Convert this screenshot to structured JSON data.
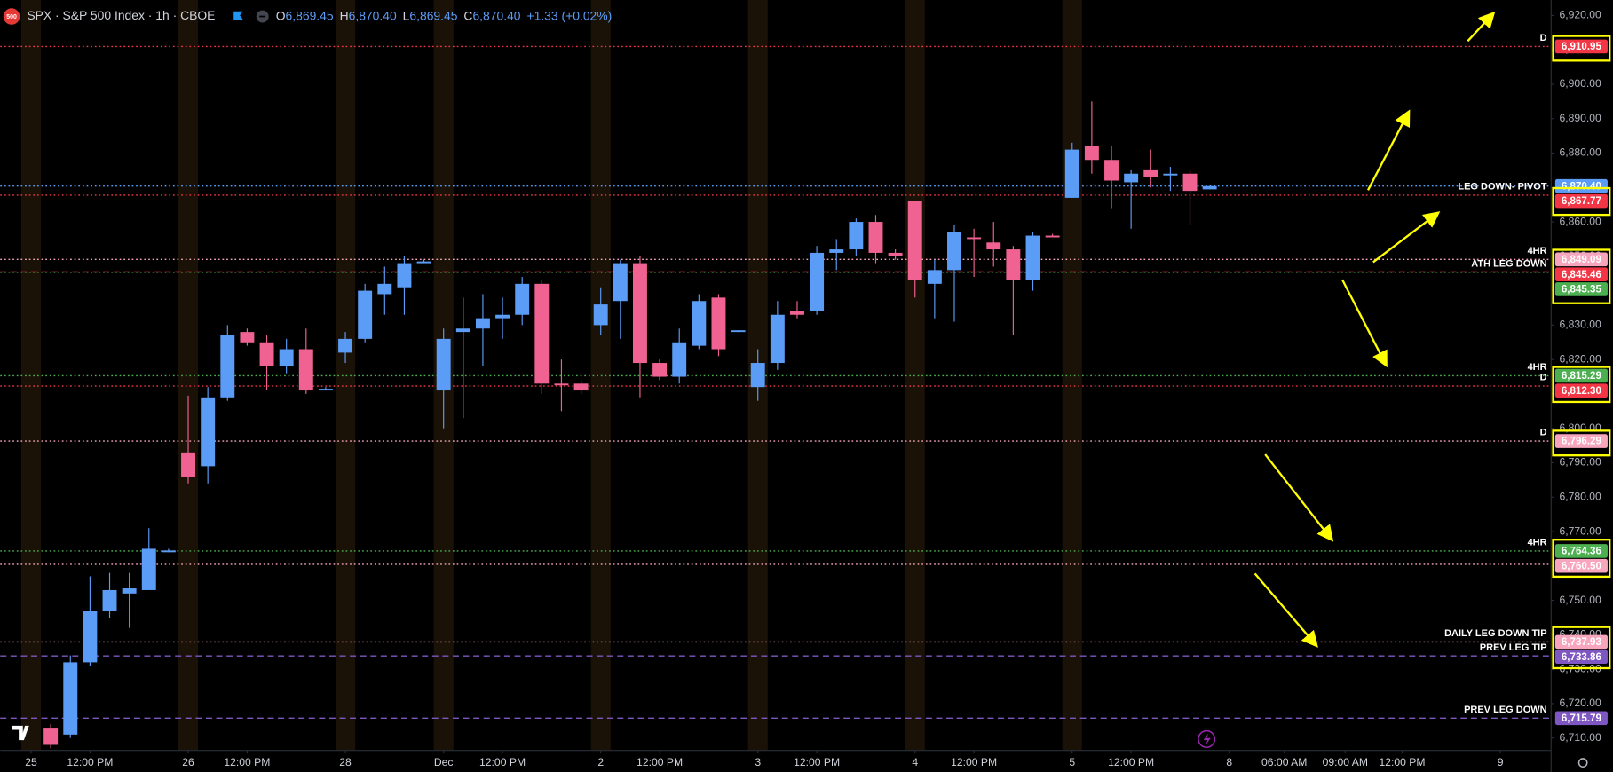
{
  "chart_data": {
    "type": "candlestick",
    "logo": "500",
    "title": "SPX · S&P 500 Index · 1h · CBOE",
    "legend_ohlc": [
      {
        "key": "O",
        "value": "6,869.45"
      },
      {
        "key": "H",
        "value": "6,870.40"
      },
      {
        "key": "L",
        "value": "6,869.45"
      },
      {
        "key": "C",
        "value": "6,870.40"
      }
    ],
    "change": "+1.33 (+0.02%)",
    "up_color": "#5b9cf6",
    "down_color": "#f06292",
    "grid": false,
    "x": [
      1,
      2,
      3,
      4,
      5,
      6,
      7,
      8,
      9,
      10,
      11,
      12,
      13,
      14,
      15,
      16,
      17,
      18,
      19,
      20,
      21,
      22,
      23,
      24,
      25,
      26,
      27,
      28,
      29,
      30,
      31,
      32,
      33,
      34,
      35,
      36,
      37,
      38,
      39,
      40,
      41,
      42,
      43,
      44,
      45,
      46,
      47,
      48,
      49,
      50,
      51,
      52,
      53,
      54,
      55,
      56,
      57,
      58,
      59,
      60
    ],
    "open": [
      6713,
      6711,
      6732,
      6747,
      6752,
      6753,
      6764,
      6793,
      6789,
      6809,
      6828,
      6825,
      6818,
      6823,
      6811,
      6822,
      6826,
      6839,
      6841,
      6848,
      6811,
      6828,
      6829,
      6832,
      6833,
      6842,
      6813,
      6813,
      6830,
      6837,
      6848,
      6819,
      6815,
      6824,
      6838,
      6828,
      6812,
      6819,
      6834,
      6834,
      6851,
      6852,
      6860,
      6851,
      6866,
      6842,
      6846,
      6855.5,
      6854,
      6852,
      6843,
      6856,
      6867,
      6882,
      6878,
      6871.5,
      6875,
      6873.5,
      6874,
      6869.45
    ],
    "high": [
      6714,
      6734,
      6757,
      6758,
      6758,
      6771,
      6765,
      6809.5,
      6812,
      6830,
      6829,
      6827,
      6826,
      6829,
      6812,
      6828,
      6842,
      6847,
      6850,
      6849,
      6829,
      6838,
      6839,
      6838,
      6844,
      6843,
      6820,
      6814,
      6841,
      6849,
      6850,
      6820,
      6829,
      6839,
      6839,
      6828.5,
      6823,
      6837,
      6837,
      6853,
      6855,
      6861,
      6862,
      6852,
      6866,
      6849,
      6859,
      6858,
      6860,
      6853,
      6857,
      6856.5,
      6883,
      6895,
      6882,
      6875,
      6881,
      6876,
      6875,
      6870.4
    ],
    "low": [
      6707,
      6710,
      6731,
      6745,
      6742,
      6753,
      6764,
      6784,
      6784,
      6808,
      6824,
      6811,
      6816,
      6810,
      6811,
      6819,
      6825,
      6833,
      6833,
      6848,
      6800,
      6803,
      6818,
      6826,
      6830,
      6810,
      6805,
      6810,
      6827,
      6826,
      6809,
      6814,
      6813,
      6823,
      6821,
      6828,
      6808,
      6817,
      6832,
      6833,
      6846,
      6850,
      6848,
      6849,
      6838,
      6832,
      6831,
      6844,
      6847,
      6827,
      6840,
      6855.5,
      6867,
      6874,
      6864,
      6858,
      6870,
      6869,
      6859,
      6869.45
    ],
    "close": [
      6708,
      6732,
      6747,
      6753,
      6753.5,
      6765,
      6764.5,
      6786,
      6809,
      6827,
      6825,
      6818,
      6823,
      6811,
      6811.5,
      6826,
      6840,
      6842,
      6848,
      6848.5,
      6826,
      6829,
      6832,
      6833,
      6842,
      6813,
      6812.5,
      6811,
      6836,
      6848,
      6819,
      6815,
      6825,
      6837,
      6823,
      6828.5,
      6819,
      6833,
      6833,
      6851,
      6852,
      6860,
      6851,
      6850,
      6843,
      6846,
      6857,
      6855,
      6852,
      6843,
      6856,
      6855.5,
      6881,
      6878,
      6872,
      6874,
      6873,
      6874,
      6869,
      6870.4
    ],
    "xlim": [
      -1.57,
      77.38
    ],
    "xticks": [
      {
        "value": 0,
        "label": "25"
      },
      {
        "value": 3,
        "label": "12:00 PM"
      },
      {
        "value": 8,
        "label": "26"
      },
      {
        "value": 11,
        "label": "12:00 PM"
      },
      {
        "value": 16,
        "label": "28"
      },
      {
        "value": 21,
        "label": "Dec"
      },
      {
        "value": 24,
        "label": "12:00 PM"
      },
      {
        "value": 29,
        "label": "2"
      },
      {
        "value": 32,
        "label": "12:00 PM"
      },
      {
        "value": 37,
        "label": "3"
      },
      {
        "value": 40,
        "label": "12:00 PM"
      },
      {
        "value": 45,
        "label": "4"
      },
      {
        "value": 48,
        "label": "12:00 PM"
      },
      {
        "value": 53,
        "label": "5"
      },
      {
        "value": 56,
        "label": "12:00 PM"
      },
      {
        "value": 61,
        "label": "8"
      },
      {
        "value": 63.8,
        "label": "06:00 AM"
      },
      {
        "value": 66.9,
        "label": "09:00 AM"
      },
      {
        "value": 69.8,
        "label": "12:00 PM"
      },
      {
        "value": 74.8,
        "label": "9"
      }
    ],
    "ylim": [
      6706.4,
      6924.48
    ],
    "yticks": [
      {
        "value": 6710,
        "label": "6,710.00"
      },
      {
        "value": 6720,
        "label": "6,720.00"
      },
      {
        "value": 6730,
        "label": "6,730.00"
      },
      {
        "value": 6740,
        "label": "6,740.00"
      },
      {
        "value": 6750,
        "label": "6,750.00"
      },
      {
        "value": 6760,
        "label": "6,760.00"
      },
      {
        "value": 6770,
        "label": "6,770.00"
      },
      {
        "value": 6780,
        "label": "6,780.00"
      },
      {
        "value": 6790,
        "label": "6,790.00"
      },
      {
        "value": 6800,
        "label": "6,800.00"
      },
      {
        "value": 6810,
        "label": "6,810.00"
      },
      {
        "value": 6820,
        "label": "6,820.00"
      },
      {
        "value": 6830,
        "label": "6,830.00"
      },
      {
        "value": 6840,
        "label": "6,840.00"
      },
      {
        "value": 6850,
        "label": "6,850.00"
      },
      {
        "value": 6860,
        "label": "6,860.00"
      },
      {
        "value": 6870,
        "label": "6,870.00"
      },
      {
        "value": 6880,
        "label": "6,880.00"
      },
      {
        "value": 6890,
        "label": "6,890.00"
      },
      {
        "value": 6900,
        "label": "6,900.00"
      },
      {
        "value": 6910,
        "label": "6,910.00"
      },
      {
        "value": 6920,
        "label": "6,920.00"
      }
    ],
    "session_bands": [
      0,
      8,
      16,
      21,
      29,
      37,
      45,
      53
    ],
    "levels": [
      {
        "label": "D",
        "value": 6910.95,
        "value_label": "6,910.95",
        "color": "#f23645",
        "style": "dotted"
      },
      {
        "value": 6870.4,
        "value_label": "6,870.40",
        "color": "#5b9cf6",
        "style": "dotted"
      },
      {
        "label": "LEG DOWN- PIVOT",
        "value": 6867.77,
        "value_label": "6,867.77",
        "color": "#f23645",
        "style": "dotted"
      },
      {
        "label": "4HR",
        "value": 6849.09,
        "value_label": "6,849.09",
        "color": "#f7a6bd",
        "style": "dotted"
      },
      {
        "value": 6845.46,
        "value_label": "6,845.46",
        "color": "#f23645",
        "style": "dashed"
      },
      {
        "label": "ATH LEG DOWN",
        "value": 6845.35,
        "value_label": "6,845.35",
        "color": "#4caf50",
        "style": "dotted"
      },
      {
        "label": "4HR",
        "value": 6815.29,
        "value_label": "6,815.29",
        "color": "#4caf50",
        "style": "dotted"
      },
      {
        "label": "D",
        "value": 6812.3,
        "value_label": "6,812.30",
        "color": "#f23645",
        "style": "dotted"
      },
      {
        "label": "D",
        "value": 6796.29,
        "value_label": "6,796.29",
        "color": "#f7a6bd",
        "style": "dotted"
      },
      {
        "label": "4HR",
        "value": 6764.36,
        "value_label": "6,764.36",
        "color": "#4caf50",
        "style": "dotted"
      },
      {
        "value": 6760.5,
        "value_label": "6,760.50",
        "color": "#f7a6bd",
        "style": "dotted"
      },
      {
        "label": "DAILY LEG DOWN TIP",
        "value": 6737.93,
        "value_label": "6,737.93",
        "color": "#f7a6bd",
        "style": "dotted"
      },
      {
        "label": "PREV LEG TIP",
        "value": 6733.86,
        "value_label": "6,733.86",
        "color": "#7e57c2",
        "style": "dashed"
      },
      {
        "label": "PREV LEG DOWN",
        "value": 6715.79,
        "value_label": "6,715.79",
        "color": "#7e57c2",
        "style": "dashed"
      }
    ]
  }
}
